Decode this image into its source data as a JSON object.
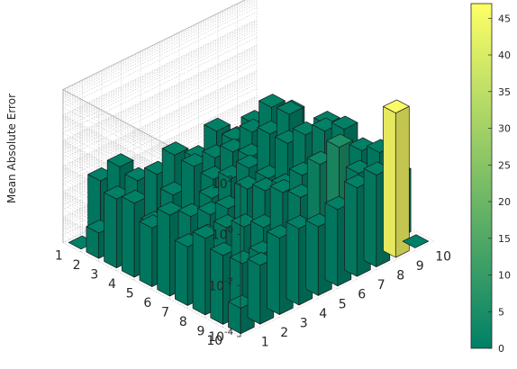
{
  "chart_data": {
    "type": "bar3",
    "title": "",
    "xlabel": "",
    "ylabel": "Mean Absolute Error",
    "zscale": "log",
    "zlim_exponents": [
      -4,
      2
    ],
    "z_tick_labels": [
      {
        "base": "10",
        "exp": "2"
      },
      {
        "base": "10",
        "exp": "0"
      },
      {
        "base": "10",
        "exp": "-2"
      },
      {
        "base": "10",
        "exp": "-4"
      }
    ],
    "row_categories": [
      "1",
      "2",
      "3",
      "4",
      "5",
      "6",
      "7",
      "8",
      "9",
      "10"
    ],
    "col_categories": [
      "1",
      "2",
      "3",
      "4",
      "5",
      "6",
      "7",
      "8",
      "9",
      "10"
    ],
    "grid": true,
    "colormap": "summer",
    "colorbar": {
      "min": 0,
      "max": 47,
      "ticks": [
        "0",
        "5",
        "10",
        "15",
        "20",
        "25",
        "30",
        "35",
        "40",
        "45"
      ],
      "tick_values": [
        0,
        5,
        10,
        15,
        20,
        25,
        30,
        35,
        40,
        45
      ],
      "color_low": "#008066",
      "color_high": "#ffff66"
    },
    "values": [
      [
        0,
        0.02,
        0.03,
        0.0005,
        0.002,
        0.003,
        0.002,
        0.01,
        0.002,
        0
      ],
      [
        0.001,
        0,
        0.02,
        0.015,
        0.01,
        0.003,
        0.005,
        0.01,
        0.02,
        0.02
      ],
      [
        0.05,
        0.002,
        0,
        0.2,
        0.03,
        0.004,
        0.02,
        0.05,
        0.2,
        0.05
      ],
      [
        0.08,
        0.005,
        0.03,
        0,
        0.004,
        0.01,
        0.03,
        0.1,
        0.25,
        0.0008
      ],
      [
        0.02,
        0.02,
        0.01,
        0.005,
        0,
        0.06,
        0.01,
        0.1,
        0.08,
        0.1
      ],
      [
        0.15,
        0.003,
        0.003,
        0.02,
        0.05,
        0,
        0.001,
        0.5,
        0.3,
        0.15
      ],
      [
        0.02,
        0.02,
        0.02,
        0.002,
        0.1,
        0.06,
        0,
        0.01,
        0.03,
        0.05
      ],
      [
        0.1,
        0.001,
        0.05,
        0.02,
        0.2,
        0.4,
        0.05,
        0,
        0.004,
        0.1
      ],
      [
        0.05,
        0.01,
        0.01,
        0.001,
        0.3,
        2.5,
        5,
        0.2,
        0,
        0.03
      ],
      [
        0.001,
        0.02,
        0.1,
        0.1,
        0.05,
        0.1,
        0.3,
        0.4,
        46,
        0
      ]
    ]
  }
}
